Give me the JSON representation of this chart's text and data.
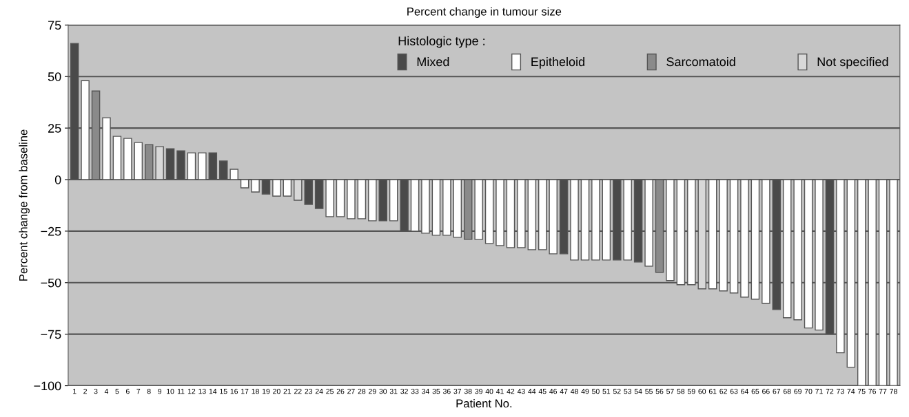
{
  "chart_data": {
    "type": "bar",
    "title": "Percent change in tumour size",
    "xlabel": "Patient No.",
    "ylabel": "Percent change from baseline",
    "legend_title": "Histologic type :",
    "categories": [
      "1",
      "2",
      "3",
      "4",
      "5",
      "6",
      "7",
      "8",
      "9",
      "10",
      "11",
      "12",
      "13",
      "14",
      "15",
      "16",
      "17",
      "18",
      "19",
      "20",
      "21",
      "22",
      "23",
      "24",
      "25",
      "26",
      "27",
      "28",
      "29",
      "30",
      "31",
      "32",
      "33",
      "34",
      "35",
      "36",
      "37",
      "38",
      "39",
      "40",
      "41",
      "42",
      "43",
      "44",
      "45",
      "46",
      "47",
      "48",
      "49",
      "50",
      "51",
      "52",
      "53",
      "54",
      "55",
      "56",
      "57",
      "58",
      "59",
      "60",
      "61",
      "62",
      "63",
      "64",
      "65",
      "66",
      "67",
      "68",
      "69",
      "70",
      "71",
      "72",
      "73",
      "74",
      "75",
      "76",
      "77",
      "78"
    ],
    "series": [
      {
        "name": "Mixed",
        "color": "#4a4a4a",
        "values": [
          66,
          null,
          null,
          null,
          null,
          null,
          null,
          null,
          null,
          15,
          14,
          null,
          null,
          13,
          9,
          null,
          null,
          null,
          -7,
          null,
          null,
          null,
          -12,
          -14,
          null,
          null,
          null,
          null,
          null,
          -20,
          null,
          -25,
          null,
          null,
          null,
          null,
          null,
          null,
          null,
          null,
          null,
          null,
          null,
          null,
          null,
          null,
          -36,
          null,
          null,
          null,
          null,
          -39,
          null,
          -40,
          null,
          null,
          null,
          null,
          null,
          null,
          null,
          null,
          null,
          null,
          null,
          null,
          -63,
          null,
          null,
          null,
          null,
          -75,
          null,
          null,
          null,
          null,
          null,
          null
        ]
      },
      {
        "name": "Epitheloid",
        "color": "#ffffff",
        "values": [
          null,
          48,
          null,
          30,
          21,
          20,
          18,
          null,
          null,
          null,
          null,
          13,
          13,
          null,
          null,
          5,
          -4,
          -6,
          null,
          -8,
          -8,
          null,
          null,
          null,
          -18,
          -18,
          -19,
          -19,
          -20,
          null,
          -20,
          null,
          -25,
          -26,
          -27,
          -27,
          -28,
          null,
          -29,
          -31,
          -32,
          -33,
          -33,
          -34,
          -34,
          -36,
          null,
          -39,
          -39,
          -39,
          -39,
          null,
          -39,
          null,
          -42,
          null,
          -49,
          -51,
          -51,
          null,
          -53,
          -54,
          -55,
          -57,
          -58,
          -60,
          null,
          -67,
          -68,
          -72,
          -73,
          null,
          -84,
          -91,
          -100,
          -100,
          -100,
          -100
        ]
      },
      {
        "name": "Sarcomatoid",
        "color": "#8a8a8a",
        "values": [
          null,
          null,
          43,
          null,
          null,
          null,
          null,
          17,
          null,
          null,
          null,
          null,
          null,
          null,
          null,
          null,
          null,
          null,
          null,
          null,
          null,
          null,
          null,
          null,
          null,
          null,
          null,
          null,
          null,
          null,
          null,
          null,
          null,
          null,
          null,
          null,
          null,
          -29,
          null,
          null,
          null,
          null,
          null,
          null,
          null,
          null,
          null,
          null,
          null,
          null,
          null,
          null,
          null,
          null,
          null,
          -45,
          null,
          null,
          null,
          null,
          null,
          null,
          null,
          null,
          null,
          null,
          null,
          null,
          null,
          null,
          null,
          null,
          null,
          null,
          null,
          null,
          null,
          null
        ]
      },
      {
        "name": "Not specified",
        "color": "#d8d8d8",
        "values": [
          null,
          null,
          null,
          null,
          null,
          null,
          null,
          null,
          16,
          null,
          null,
          null,
          null,
          null,
          null,
          null,
          null,
          null,
          null,
          null,
          null,
          -10,
          null,
          null,
          null,
          null,
          null,
          null,
          null,
          null,
          null,
          null,
          null,
          null,
          null,
          null,
          null,
          null,
          null,
          null,
          null,
          null,
          null,
          null,
          null,
          null,
          null,
          null,
          null,
          null,
          null,
          null,
          null,
          null,
          null,
          null,
          null,
          null,
          null,
          -53,
          null,
          null,
          null,
          null,
          null,
          null,
          null,
          null,
          null,
          null,
          null,
          null,
          null,
          null,
          null,
          null,
          null,
          null
        ]
      }
    ],
    "ylim": [
      -100,
      75
    ],
    "yticks": [
      {
        "value": -100,
        "label": "−100"
      },
      {
        "value": -75,
        "label": "−75"
      },
      {
        "value": -50,
        "label": "−50"
      },
      {
        "value": -25,
        "label": "−25"
      },
      0,
      25,
      50,
      75
    ],
    "grid": "y",
    "legend": "top right"
  }
}
